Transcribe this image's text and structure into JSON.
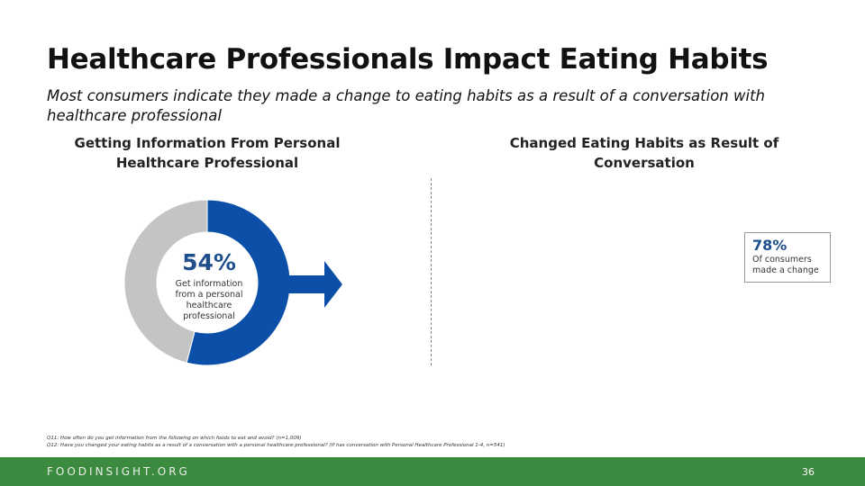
{
  "slide": {
    "title": "Healthcare Professionals Impact Eating Habits",
    "subtitle": "Most consumers indicate they made a change to eating habits as a result of a conversation with healthcare professional"
  },
  "left_panel": {
    "heading_line1": "Getting Information From Personal",
    "heading_line2": "Healthcare Professional"
  },
  "right_panel": {
    "heading_line1": "Changed Eating Habits as Result of",
    "heading_line2": "Conversation",
    "stat_value": "78%",
    "stat_label_line1": "Of consumers",
    "stat_label_line2": "made a change"
  },
  "chart_data": {
    "type": "pie",
    "title": "Getting Information From Personal Healthcare Professional",
    "donut": true,
    "center_value": "54%",
    "center_label_lines": [
      "Get information",
      "from a personal",
      "healthcare",
      "professional"
    ],
    "values": [
      54,
      46
    ],
    "colors": [
      "#0b4fa8",
      "#c4c4c4"
    ]
  },
  "colors": {
    "accent_blue": "#0b4fa8",
    "gray": "#c4c4c4",
    "footer_green": "#3c8a3f",
    "value_text": "#1f4e8c"
  },
  "footnotes": [
    "Q11: How often do you get information from the following on which foods to eat and avoid? (n=1,009)",
    "Q12: Have you changed your eating habits as a result of a conversation with a personal healthcare professional? (If has conversation with Personal Healthcare Professional 1-4, n=541)"
  ],
  "footer": {
    "logo_text": "FOODINSIGHT.ORG",
    "page_number": "36"
  }
}
